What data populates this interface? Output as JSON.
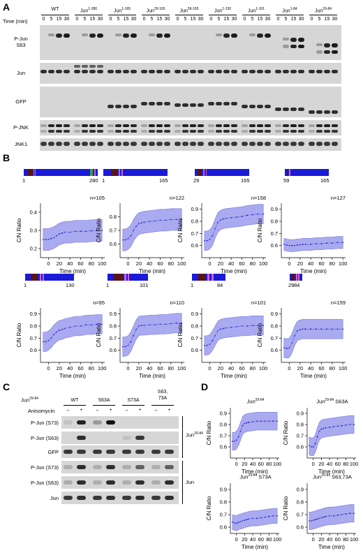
{
  "panels": {
    "A": "A",
    "B": "B",
    "C": "C",
    "D": "D"
  },
  "panel_a": {
    "time_label": "Time (min)",
    "time_points": [
      "0",
      "5",
      "15",
      "30"
    ],
    "constructs": [
      {
        "base": "WT",
        "sup": ""
      },
      {
        "base": "Jun",
        "sup": "1-280"
      },
      {
        "base": "Jun",
        "sup": "1-165"
      },
      {
        "base": "Jun",
        "sup": "29-165"
      },
      {
        "base": "Jun",
        "sup": "59-165"
      },
      {
        "base": "Jun",
        "sup": "1-130"
      },
      {
        "base": "Jun",
        "sup": "1-101"
      },
      {
        "base": "Jun",
        "sup": "1-84"
      },
      {
        "base": "Jun",
        "sup": "29-84"
      }
    ],
    "row_labels": [
      "P-Jun\nS63",
      "Jun",
      "GFP",
      "P-JNK",
      "JNK1"
    ]
  },
  "panel_b": {
    "ylabel": "C/N Ratio",
    "xlabel": "Time (min)",
    "construct_bars": [
      {
        "start": "1",
        "end": "280"
      },
      {
        "start": "1",
        "end": "165"
      },
      {
        "start": "29",
        "end": "165"
      },
      {
        "start": "59",
        "end": "165"
      },
      {
        "start": "1",
        "end": "130"
      },
      {
        "start": "1",
        "end": "101"
      },
      {
        "start": "1",
        "end": "84"
      },
      {
        "start": "29",
        "end": "84"
      }
    ]
  },
  "panel_c": {
    "title_base": "Jun",
    "title_sup": "29-84",
    "anisomycin_label": "Anisomycin",
    "signs": [
      "–",
      "+"
    ],
    "columns": [
      "WT",
      "S63A",
      "S73A",
      "S63,\n73A"
    ],
    "rows": [
      "P-Jun (S73)",
      "P-Jun (S63)",
      "GFP",
      "P-Jun (S73)",
      "P-Jun (S63)",
      "Jun"
    ],
    "group_labels": [
      {
        "base": "Jun",
        "sup": "29-84"
      },
      {
        "base": "Jun",
        "sup": ""
      }
    ]
  },
  "panel_d": {
    "ylabel": "C/N Ratio",
    "xlabel": "Time (min)",
    "titles": [
      {
        "base": "Jun",
        "sup": "29-84",
        "suffix": ""
      },
      {
        "base": "Jun",
        "sup": "29-84",
        "suffix": " S63A"
      },
      {
        "base": "Jun",
        "sup": "29-84",
        "suffix": " S73A"
      },
      {
        "base": "Jun",
        "sup": "29-84",
        "suffix": " S63,73A"
      }
    ]
  },
  "colors": {
    "line": "#2222cc",
    "band": "#aaaaf0",
    "bar_blue": "#1a1ad8",
    "bar_dark": "#5a1414",
    "bar_pink": "#d060d0",
    "bar_green": "#3aa04a"
  },
  "chart_data": [
    {
      "type": "line",
      "panel": "B",
      "n": "n=105",
      "x": [
        -10,
        -5,
        0,
        5,
        10,
        15,
        20,
        25,
        30,
        40,
        50,
        60,
        70,
        80,
        90,
        100
      ],
      "y": [
        0.25,
        0.25,
        0.25,
        0.255,
        0.26,
        0.27,
        0.28,
        0.285,
        0.29,
        0.29,
        0.295,
        0.295,
        0.295,
        0.298,
        0.3,
        0.3
      ],
      "band": 0.06,
      "ylim": [
        0.15,
        0.45
      ],
      "yticks": [
        0.2,
        0.3,
        0.4
      ],
      "xticks": [
        0,
        20,
        40,
        60,
        80,
        100
      ]
    },
    {
      "type": "line",
      "panel": "B",
      "n": "n=122",
      "x": [
        -10,
        -5,
        0,
        5,
        10,
        15,
        20,
        25,
        30,
        40,
        50,
        60,
        70,
        80,
        90,
        100
      ],
      "y": [
        0.63,
        0.63,
        0.64,
        0.66,
        0.7,
        0.73,
        0.75,
        0.755,
        0.76,
        0.765,
        0.77,
        0.775,
        0.775,
        0.78,
        0.78,
        0.78
      ],
      "band": 0.08,
      "ylim": [
        0.5,
        0.9
      ],
      "yticks": [
        0.6,
        0.7,
        0.8
      ],
      "xticks": [
        0,
        20,
        40,
        60,
        80,
        100
      ]
    },
    {
      "type": "line",
      "panel": "B",
      "n": "n=158",
      "x": [
        -10,
        -5,
        0,
        5,
        10,
        15,
        20,
        25,
        30,
        40,
        50,
        60,
        70,
        80,
        90,
        100
      ],
      "y": [
        0.64,
        0.64,
        0.65,
        0.68,
        0.74,
        0.79,
        0.81,
        0.82,
        0.825,
        0.83,
        0.835,
        0.84,
        0.85,
        0.855,
        0.86,
        0.86
      ],
      "band": 0.08,
      "ylim": [
        0.5,
        0.95
      ],
      "yticks": [
        0.6,
        0.7,
        0.8,
        0.9
      ],
      "xticks": [
        0,
        20,
        40,
        60,
        80,
        100
      ]
    },
    {
      "type": "line",
      "panel": "B",
      "n": "n=127",
      "x": [
        -10,
        -5,
        0,
        5,
        10,
        15,
        20,
        25,
        30,
        40,
        50,
        60,
        70,
        80,
        90,
        100
      ],
      "y": [
        0.61,
        0.605,
        0.6,
        0.6,
        0.6,
        0.605,
        0.605,
        0.61,
        0.61,
        0.61,
        0.615,
        0.615,
        0.62,
        0.62,
        0.625,
        0.625
      ],
      "band": 0.05,
      "ylim": [
        0.5,
        0.95
      ],
      "yticks": [
        0.6,
        0.7,
        0.8,
        0.9
      ],
      "xticks": [
        0,
        20,
        40,
        60,
        80,
        100
      ]
    },
    {
      "type": "line",
      "panel": "B",
      "n": "n=95",
      "x": [
        -10,
        -5,
        0,
        5,
        10,
        15,
        20,
        25,
        30,
        40,
        50,
        60,
        70,
        80,
        90,
        100
      ],
      "y": [
        0.67,
        0.67,
        0.68,
        0.7,
        0.73,
        0.75,
        0.765,
        0.77,
        0.78,
        0.79,
        0.8,
        0.8,
        0.81,
        0.81,
        0.815,
        0.815
      ],
      "band": 0.08,
      "ylim": [
        0.5,
        0.95
      ],
      "yticks": [
        0.6,
        0.7,
        0.8,
        0.9
      ],
      "xticks": [
        0,
        20,
        40,
        60,
        80,
        100
      ]
    },
    {
      "type": "line",
      "panel": "B",
      "n": "n=110",
      "x": [
        -10,
        -5,
        0,
        5,
        10,
        15,
        20,
        25,
        30,
        40,
        50,
        60,
        70,
        80,
        90,
        100
      ],
      "y": [
        0.63,
        0.63,
        0.64,
        0.67,
        0.72,
        0.77,
        0.8,
        0.805,
        0.805,
        0.81,
        0.81,
        0.815,
        0.815,
        0.82,
        0.825,
        0.825
      ],
      "band": 0.08,
      "ylim": [
        0.5,
        0.95
      ],
      "yticks": [
        0.6,
        0.7,
        0.8,
        0.9
      ],
      "xticks": [
        0,
        20,
        40,
        60,
        80,
        100
      ]
    },
    {
      "type": "line",
      "panel": "B",
      "n": "n=101",
      "x": [
        -10,
        -5,
        0,
        5,
        10,
        15,
        20,
        25,
        30,
        40,
        50,
        60,
        70,
        80,
        90,
        100
      ],
      "y": [
        0.64,
        0.64,
        0.65,
        0.68,
        0.72,
        0.76,
        0.775,
        0.78,
        0.785,
        0.79,
        0.795,
        0.8,
        0.8,
        0.805,
        0.805,
        0.805
      ],
      "band": 0.08,
      "ylim": [
        0.5,
        0.95
      ],
      "yticks": [
        0.6,
        0.7,
        0.8,
        0.9
      ],
      "xticks": [
        0,
        20,
        40,
        60,
        80,
        100
      ]
    },
    {
      "type": "line",
      "panel": "B",
      "n": "n=159",
      "x": [
        -10,
        -5,
        0,
        5,
        10,
        15,
        20,
        25,
        30,
        40,
        50,
        60,
        70,
        80,
        90,
        100
      ],
      "y": [
        0.62,
        0.615,
        0.62,
        0.66,
        0.72,
        0.76,
        0.77,
        0.775,
        0.775,
        0.775,
        0.775,
        0.775,
        0.775,
        0.775,
        0.775,
        0.775
      ],
      "band": 0.08,
      "ylim": [
        0.5,
        0.95
      ],
      "yticks": [
        0.6,
        0.7,
        0.8,
        0.9
      ],
      "xticks": [
        0,
        20,
        40,
        60,
        80,
        100
      ]
    },
    {
      "type": "line",
      "panel": "D",
      "n": "",
      "x": [
        -10,
        -5,
        0,
        5,
        10,
        15,
        20,
        25,
        30,
        40,
        50,
        60,
        70,
        80,
        90,
        100
      ],
      "y": [
        0.65,
        0.65,
        0.66,
        0.69,
        0.74,
        0.79,
        0.81,
        0.815,
        0.82,
        0.825,
        0.83,
        0.83,
        0.83,
        0.83,
        0.83,
        0.83
      ],
      "band": 0.08,
      "ylim": [
        0.5,
        0.95
      ],
      "yticks": [
        0.6,
        0.7,
        0.8,
        0.9
      ],
      "xticks": [
        0,
        20,
        40,
        60,
        80,
        100
      ]
    },
    {
      "type": "line",
      "panel": "D",
      "n": "",
      "x": [
        -10,
        -5,
        0,
        5,
        10,
        15,
        20,
        25,
        30,
        40,
        50,
        60,
        70,
        80,
        90,
        100
      ],
      "y": [
        0.61,
        0.6,
        0.6,
        0.63,
        0.69,
        0.74,
        0.76,
        0.765,
        0.77,
        0.775,
        0.78,
        0.785,
        0.79,
        0.795,
        0.8,
        0.8
      ],
      "band": 0.08,
      "ylim": [
        0.5,
        0.95
      ],
      "yticks": [
        0.6,
        0.7,
        0.8,
        0.9
      ],
      "xticks": [
        0,
        20,
        40,
        60,
        80,
        100
      ]
    },
    {
      "type": "line",
      "panel": "D",
      "n": "",
      "x": [
        -10,
        -5,
        0,
        5,
        10,
        15,
        20,
        25,
        30,
        40,
        50,
        60,
        70,
        80,
        90,
        100
      ],
      "y": [
        0.64,
        0.635,
        0.63,
        0.64,
        0.645,
        0.65,
        0.655,
        0.66,
        0.665,
        0.67,
        0.67,
        0.675,
        0.68,
        0.685,
        0.69,
        0.69
      ],
      "band": 0.06,
      "ylim": [
        0.55,
        0.95
      ],
      "yticks": [
        0.6,
        0.7,
        0.8,
        0.9
      ],
      "xticks": [
        0,
        20,
        40,
        60,
        80,
        100
      ]
    },
    {
      "type": "line",
      "panel": "D",
      "n": "",
      "x": [
        -10,
        -5,
        0,
        5,
        10,
        15,
        20,
        25,
        30,
        40,
        50,
        60,
        70,
        80,
        90,
        100
      ],
      "y": [
        0.65,
        0.65,
        0.655,
        0.66,
        0.665,
        0.67,
        0.675,
        0.68,
        0.685,
        0.69,
        0.69,
        0.695,
        0.7,
        0.705,
        0.71,
        0.71
      ],
      "band": 0.07,
      "ylim": [
        0.55,
        0.95
      ],
      "yticks": [
        0.6,
        0.7,
        0.8,
        0.9
      ],
      "xticks": [
        0,
        20,
        40,
        60,
        80,
        100
      ]
    }
  ]
}
